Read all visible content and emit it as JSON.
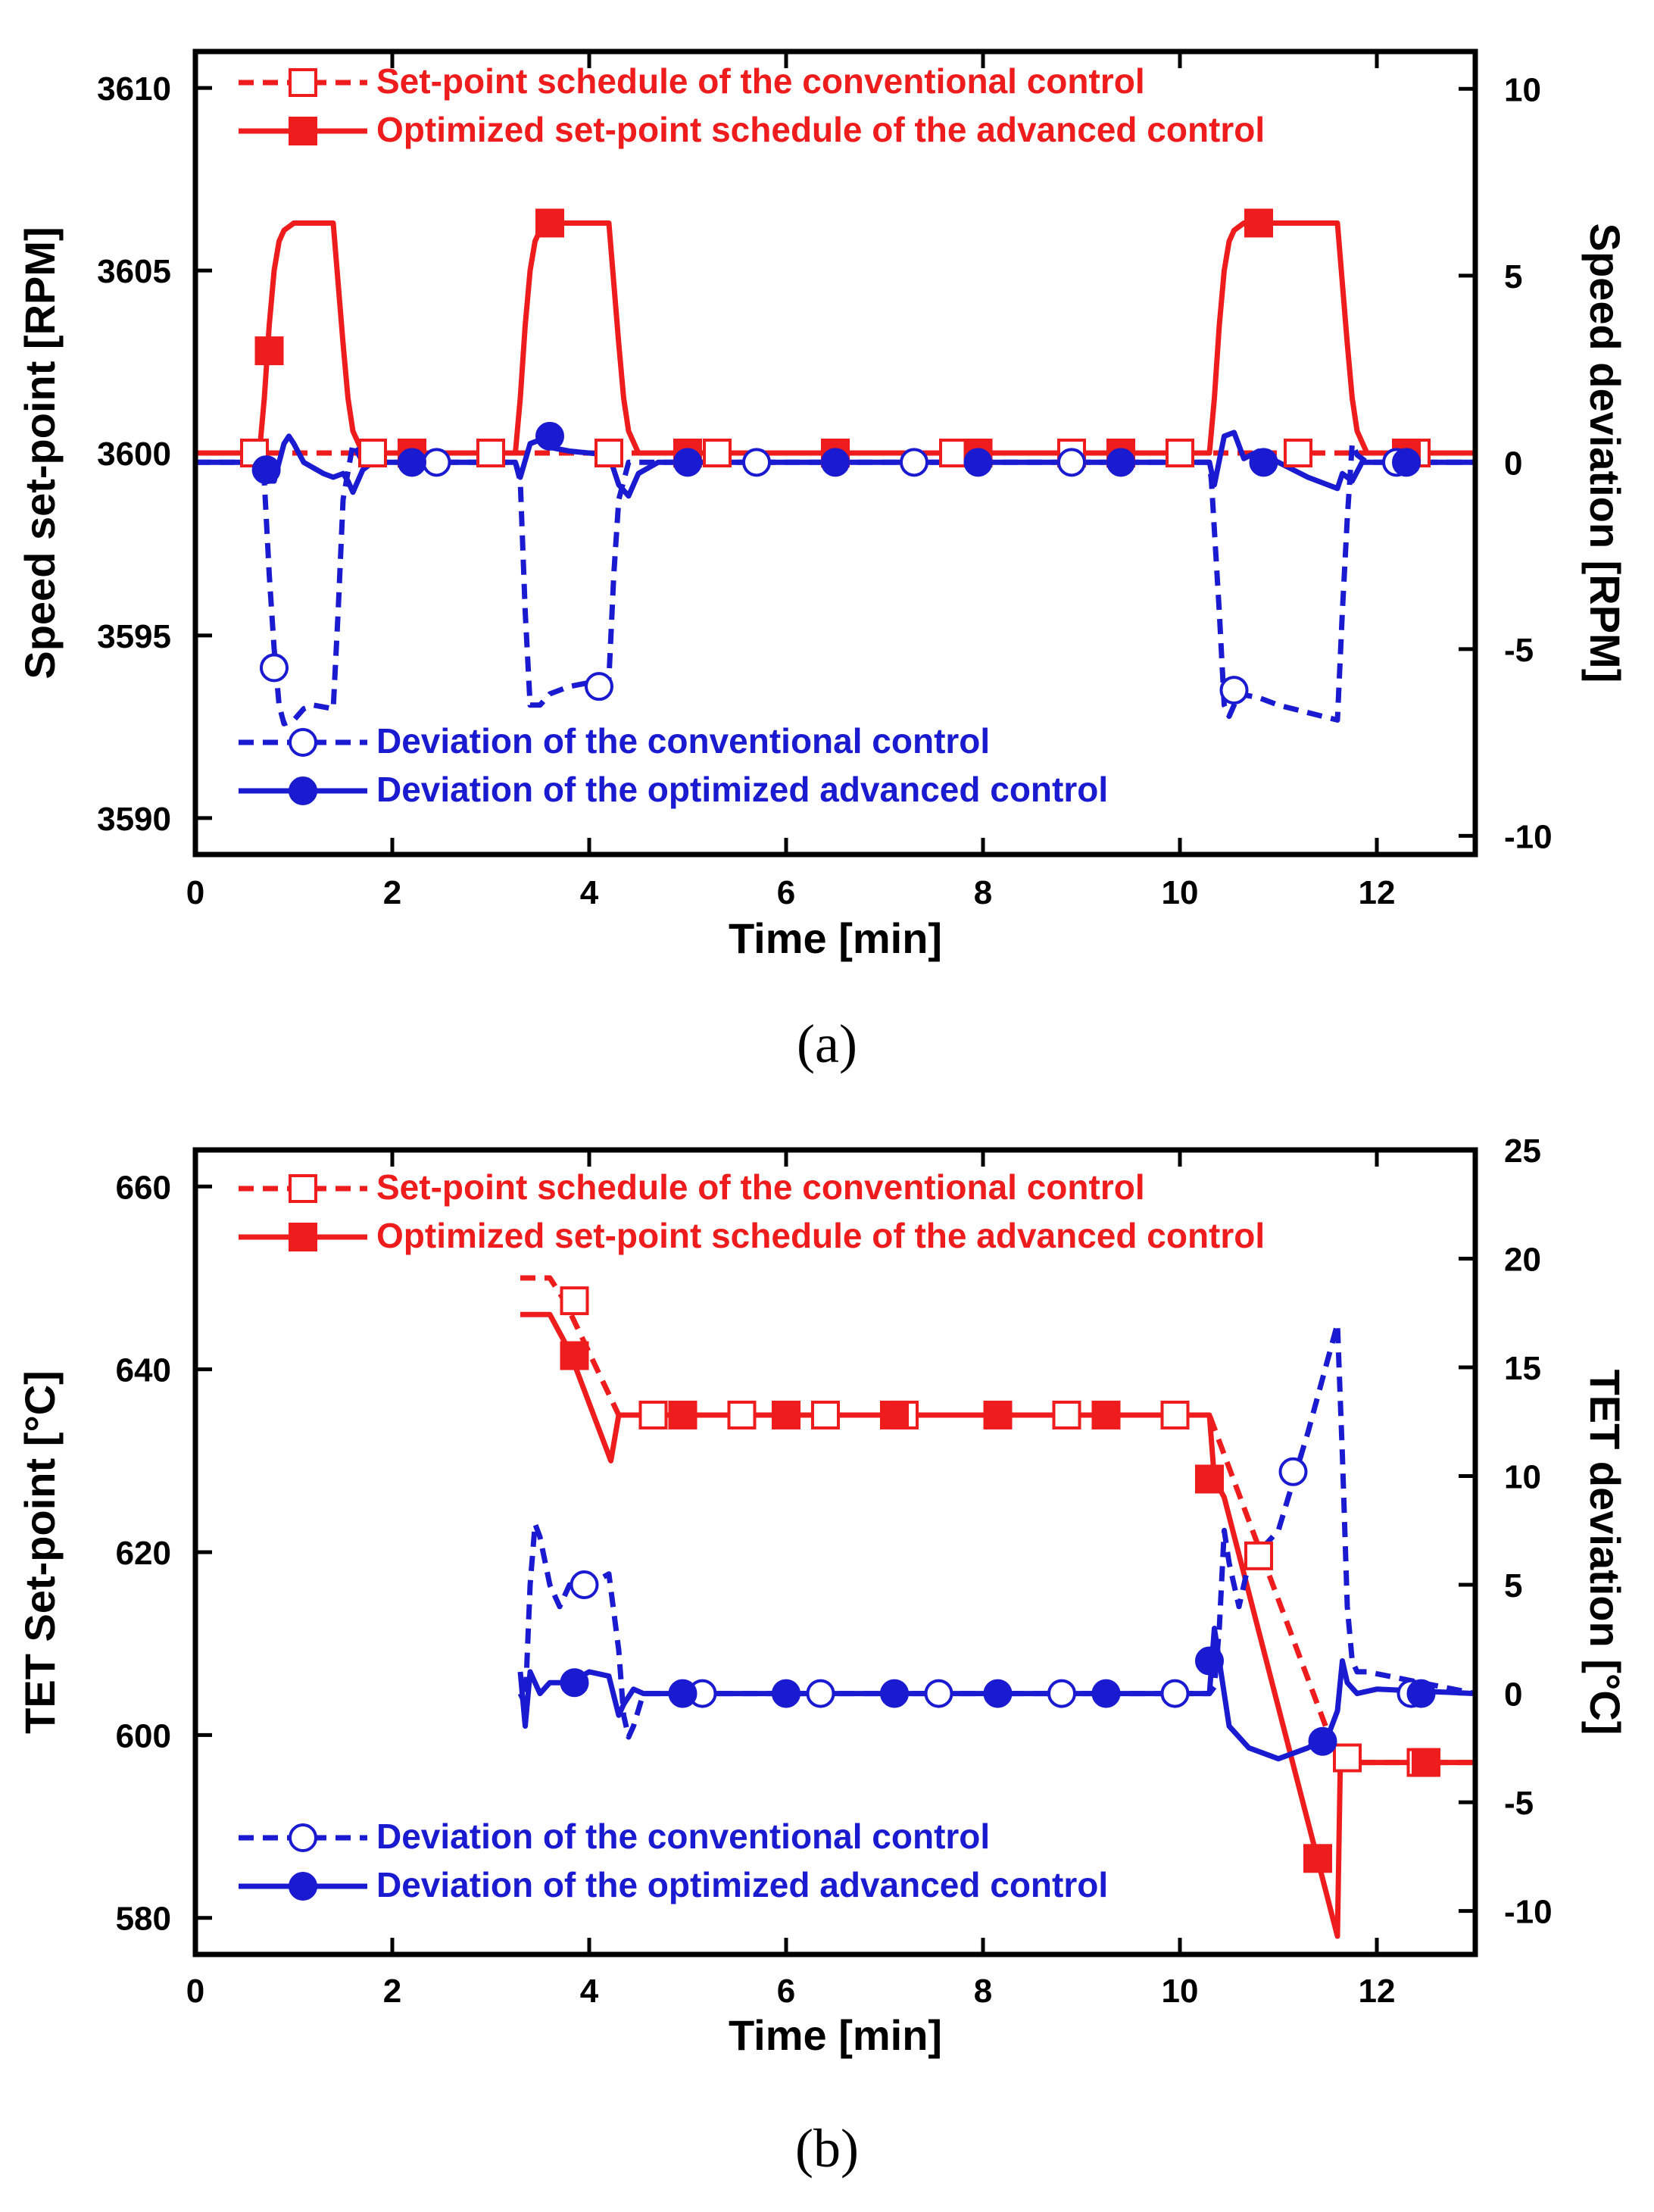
{
  "chart_data": [
    {
      "id": "a",
      "type": "line",
      "caption": "(a)",
      "xlabel": "Time [min]",
      "ylabel_left": "Speed set-point [RPM]",
      "ylabel_right": "Speed deviation [RPM]",
      "xlim": [
        0,
        13
      ],
      "ylim_left": [
        3589,
        3611
      ],
      "ylim_right": [
        -10.5,
        11
      ],
      "xticks": [
        0,
        2,
        4,
        6,
        8,
        10,
        12
      ],
      "xtick_labels": [
        "0",
        "2",
        "4",
        "6",
        "8",
        "10",
        "12"
      ],
      "yticks_left": [
        3590,
        3595,
        3600,
        3605,
        3610
      ],
      "ytick_labels_left": [
        "3590",
        "3595",
        "3600",
        "3605",
        "3610"
      ],
      "yticks_right": [
        -10,
        -5,
        0,
        5,
        10
      ],
      "ytick_labels_right": [
        "-10",
        "-5",
        "0",
        "5",
        "10"
      ],
      "legend_top": [
        "Set-point schedule of the conventional control",
        "Optimized set-point schedule of the advanced control"
      ],
      "legend_bottom": [
        "Deviation of the conventional control",
        "Deviation of the optimized advanced control"
      ],
      "colors": {
        "setpoint": "#ee1c1c",
        "deviation": "#1a1ad0"
      },
      "series": [
        {
          "name": "Set-point schedule of the conventional control",
          "axis": "left",
          "color": "#ee1c1c",
          "dash": true,
          "marker": "square-open",
          "x": [
            0,
            13
          ],
          "y": [
            3600,
            3600
          ],
          "marker_x": [
            0.6,
            1.8,
            3.0,
            4.2,
            5.3,
            7.7,
            8.9,
            10.0,
            11.2,
            12.4
          ]
        },
        {
          "name": "Optimized set-point schedule of the advanced control",
          "axis": "left",
          "color": "#ee1c1c",
          "dash": false,
          "marker": "square-filled",
          "x": [
            0,
            0.65,
            0.7,
            0.75,
            0.8,
            0.85,
            0.9,
            1.0,
            1.4,
            1.5,
            1.55,
            1.6,
            1.7,
            3.25,
            3.3,
            3.35,
            3.4,
            3.45,
            3.5,
            3.6,
            4.2,
            4.3,
            4.35,
            4.4,
            4.5,
            10.3,
            10.35,
            10.4,
            10.45,
            10.5,
            10.55,
            10.65,
            11.6,
            11.7,
            11.75,
            11.8,
            11.9,
            13
          ],
          "y": [
            3600,
            3600,
            3601.5,
            3603.5,
            3605,
            3605.8,
            3606.1,
            3606.3,
            3606.3,
            3603,
            3601.5,
            3600.6,
            3600,
            3600,
            3601.5,
            3603.5,
            3605,
            3605.8,
            3606.1,
            3606.3,
            3606.3,
            3603,
            3601.5,
            3600.6,
            3600,
            3600,
            3601.5,
            3603.5,
            3605,
            3605.8,
            3606.1,
            3606.3,
            3606.3,
            3603,
            3601.5,
            3600.6,
            3600,
            3600
          ],
          "marker_points": [
            [
              0.75,
              3602.8
            ],
            [
              2.2,
              3600
            ],
            [
              3.6,
              3606.3
            ],
            [
              5.0,
              3600
            ],
            [
              6.5,
              3600
            ],
            [
              7.95,
              3600
            ],
            [
              9.4,
              3600
            ],
            [
              10.8,
              3606.3
            ],
            [
              12.3,
              3600
            ]
          ]
        },
        {
          "name": "Deviation of the conventional control",
          "axis": "right",
          "color": "#1a1ad0",
          "dash": true,
          "marker": "circle-open",
          "x": [
            0,
            0.65,
            0.7,
            0.75,
            0.8,
            0.85,
            0.9,
            1.0,
            1.1,
            1.2,
            1.4,
            1.45,
            1.5,
            1.6,
            1.7,
            3.25,
            3.3,
            3.35,
            3.4,
            3.5,
            3.6,
            3.8,
            4.2,
            4.25,
            4.3,
            4.4,
            4.5,
            10.3,
            10.32,
            10.4,
            10.45,
            10.5,
            10.6,
            10.8,
            11.0,
            11.3,
            11.6,
            11.65,
            11.7,
            11.75,
            11.8,
            11.9,
            12.0,
            13
          ],
          "y": [
            0,
            0,
            -0.5,
            -3,
            -5,
            -6.5,
            -7,
            -6.9,
            -6.6,
            -6.5,
            -6.6,
            -4,
            -1,
            0.5,
            0,
            0,
            -0.5,
            -4,
            -6.5,
            -6.5,
            -6.2,
            -6.0,
            -5.8,
            -3,
            -1,
            0,
            0,
            0,
            -0.5,
            -4,
            -6.5,
            -6.8,
            -6.2,
            -6.3,
            -6.5,
            -6.7,
            -6.9,
            -4,
            -1.5,
            0.5,
            0.2,
            0,
            0,
            0
          ],
          "marker_points": [
            [
              0.8,
              -5.5
            ],
            [
              2.45,
              0
            ],
            [
              4.1,
              -6.0
            ],
            [
              5.7,
              0
            ],
            [
              7.3,
              0
            ],
            [
              8.9,
              0
            ],
            [
              10.55,
              -6.1
            ],
            [
              12.2,
              0
            ]
          ]
        },
        {
          "name": "Deviation of the optimized advanced control",
          "axis": "right",
          "color": "#1a1ad0",
          "dash": false,
          "marker": "circle-filled",
          "x": [
            0,
            0.65,
            0.7,
            0.8,
            0.9,
            0.95,
            1.0,
            1.1,
            1.3,
            1.4,
            1.5,
            1.55,
            1.6,
            1.7,
            1.8,
            2.0,
            3.25,
            3.3,
            3.4,
            3.5,
            3.6,
            3.8,
            4.2,
            4.3,
            4.4,
            4.5,
            4.7,
            10.3,
            10.35,
            10.45,
            10.55,
            10.65,
            10.8,
            11.0,
            11.3,
            11.6,
            11.65,
            11.75,
            11.85,
            12.0,
            13
          ],
          "y": [
            0,
            0,
            -0.5,
            -0.5,
            0.5,
            0.7,
            0.5,
            0,
            -0.3,
            -0.4,
            -0.3,
            -0.5,
            -0.8,
            -0.2,
            0,
            0,
            0,
            -0.4,
            0.5,
            0.6,
            0.4,
            0.3,
            0.2,
            -0.6,
            -0.9,
            -0.3,
            0,
            0,
            -0.6,
            0.7,
            0.8,
            0.1,
            0.3,
            0,
            -0.4,
            -0.7,
            -0.3,
            -0.5,
            0,
            0,
            0
          ],
          "marker_points": [
            [
              0.72,
              -0.2
            ],
            [
              2.2,
              0
            ],
            [
              3.6,
              0.7
            ],
            [
              5.0,
              0
            ],
            [
              6.5,
              0
            ],
            [
              7.95,
              0
            ],
            [
              9.4,
              0
            ],
            [
              10.85,
              0
            ],
            [
              12.3,
              0
            ]
          ]
        }
      ]
    },
    {
      "id": "b",
      "type": "line",
      "caption": "(b)",
      "xlabel": "Time [min]",
      "ylabel_left": "TET Set-point [°C]",
      "ylabel_right": "TET deviation [°C]",
      "xlim": [
        0,
        13
      ],
      "ylim_left": [
        576,
        664
      ],
      "ylim_right": [
        -12,
        25
      ],
      "xticks": [
        0,
        2,
        4,
        6,
        8,
        10,
        12
      ],
      "xtick_labels": [
        "0",
        "2",
        "4",
        "6",
        "8",
        "10",
        "12"
      ],
      "yticks_left": [
        580,
        600,
        620,
        640,
        660
      ],
      "ytick_labels_left": [
        "580",
        "600",
        "620",
        "640",
        "660"
      ],
      "yticks_right": [
        -10,
        -5,
        0,
        5,
        10,
        15,
        20,
        25
      ],
      "ytick_labels_right": [
        "-10",
        "-5",
        "0",
        "5",
        "10",
        "15",
        "20",
        "25"
      ],
      "legend_top": [
        "Set-point schedule of the conventional control",
        "Optimized set-point schedule of the advanced control"
      ],
      "legend_bottom": [
        "Deviation of  the conventional control",
        "Deviation of the optimized advanced control"
      ],
      "colors": {
        "setpoint": "#ee1c1c",
        "deviation": "#1a1ad0"
      },
      "series": [
        {
          "name": "Set-point schedule of the conventional control",
          "axis": "left",
          "color": "#ee1c1c",
          "dash": true,
          "marker": "square-open",
          "x": [
            3.3,
            3.6,
            3.75,
            4.3,
            10.3,
            11.6,
            11.7,
            13
          ],
          "y": [
            650,
            650,
            647.5,
            635,
            635,
            597.5,
            597,
            597
          ],
          "marker_points": [
            [
              3.85,
              647.5
            ],
            [
              4.65,
              635
            ],
            [
              5.55,
              635
            ],
            [
              6.4,
              635
            ],
            [
              7.2,
              635
            ],
            [
              8.85,
              635
            ],
            [
              9.95,
              635
            ],
            [
              10.8,
              619.6
            ],
            [
              11.7,
              597.5
            ],
            [
              12.45,
              597
            ]
          ]
        },
        {
          "name": "Optimized set-point schedule of the advanced control",
          "axis": "left",
          "color": "#ee1c1c",
          "dash": false,
          "marker": "square-filled",
          "x": [
            3.3,
            3.6,
            3.8,
            4.22,
            4.3,
            4.4,
            10.3,
            10.35,
            10.45,
            11.6,
            11.63,
            11.7,
            11.8,
            13
          ],
          "y": [
            646,
            646,
            642,
            630,
            635,
            635,
            635,
            628,
            626,
            578,
            597.5,
            597,
            597,
            597
          ],
          "marker_points": [
            [
              3.85,
              641.5
            ],
            [
              4.95,
              635
            ],
            [
              6.0,
              635
            ],
            [
              7.1,
              635
            ],
            [
              8.15,
              635
            ],
            [
              9.25,
              635
            ],
            [
              10.3,
              628
            ],
            [
              11.4,
              586.5
            ],
            [
              12.5,
              597
            ]
          ]
        },
        {
          "name": "Deviation of  the conventional control",
          "axis": "right",
          "color": "#1a1ad0",
          "dash": true,
          "marker": "circle-open",
          "x": [
            3.3,
            3.35,
            3.4,
            3.45,
            3.5,
            3.6,
            3.7,
            3.8,
            4.0,
            4.2,
            4.3,
            4.35,
            4.4,
            4.45,
            4.55,
            10.3,
            10.35,
            10.4,
            10.45,
            10.5,
            10.6,
            10.7,
            11.0,
            11.3,
            11.6,
            11.65,
            11.7,
            11.75,
            11.8,
            11.9,
            13
          ],
          "y": [
            0,
            -0.5,
            5,
            7.8,
            7.2,
            5,
            4,
            5,
            5,
            5.5,
            2,
            -1,
            -2,
            -1.5,
            0,
            0,
            0.3,
            3,
            7.5,
            6,
            4,
            6,
            7.5,
            12,
            17,
            11,
            4,
            1.5,
            1,
            1,
            0
          ],
          "marker_points": [
            [
              3.95,
              5.0
            ],
            [
              5.15,
              0
            ],
            [
              6.35,
              0
            ],
            [
              7.55,
              0
            ],
            [
              8.8,
              0
            ],
            [
              9.95,
              0
            ],
            [
              11.15,
              10.2
            ],
            [
              12.35,
              0
            ]
          ]
        },
        {
          "name": "Deviation of the optimized advanced control",
          "axis": "right",
          "color": "#1a1ad0",
          "dash": false,
          "marker": "circle-filled",
          "x": [
            3.3,
            3.35,
            3.4,
            3.5,
            3.6,
            3.7,
            3.8,
            4.0,
            4.2,
            4.3,
            4.35,
            4.45,
            4.55,
            10.3,
            10.35,
            10.5,
            10.7,
            11.0,
            11.3,
            11.5,
            11.6,
            11.65,
            11.7,
            11.8,
            12.0,
            13
          ],
          "y": [
            1,
            -1.5,
            1,
            0,
            0.5,
            0.5,
            0.5,
            1,
            0.8,
            -1,
            -0.5,
            0.2,
            0,
            0,
            3,
            -1.5,
            -2.5,
            -3,
            -2.5,
            -2,
            -0.8,
            1.5,
            0.5,
            0,
            0.2,
            0
          ],
          "marker_points": [
            [
              3.85,
              0.5
            ],
            [
              4.95,
              0
            ],
            [
              6.0,
              0
            ],
            [
              7.1,
              0
            ],
            [
              8.15,
              0
            ],
            [
              9.25,
              0
            ],
            [
              10.3,
              1.5
            ],
            [
              11.45,
              -2.2
            ],
            [
              12.45,
              0
            ]
          ]
        }
      ]
    }
  ]
}
